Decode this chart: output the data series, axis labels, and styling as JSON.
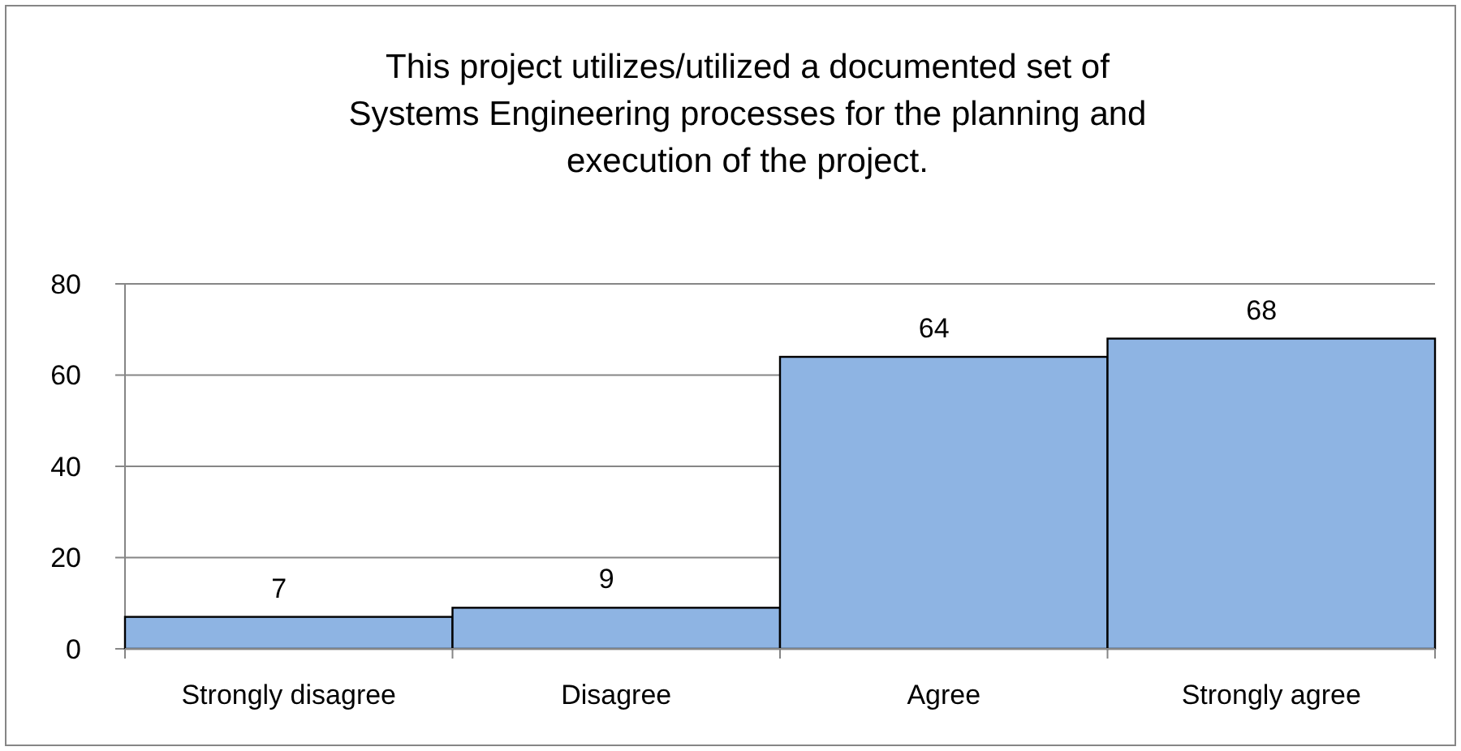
{
  "chart_data": {
    "type": "bar",
    "title": "This project utilizes/utilized a documented set of Systems Engineering processes for the planning and execution of the project.",
    "categories": [
      "Strongly disagree",
      "Disagree",
      "Agree",
      "Strongly agree"
    ],
    "values": [
      7,
      9,
      64,
      68
    ],
    "color": "#8eb4e3",
    "ylim": [
      0,
      80
    ],
    "yticks": [
      0,
      20,
      40,
      60,
      80
    ],
    "grid": "y",
    "data_labels": true
  }
}
